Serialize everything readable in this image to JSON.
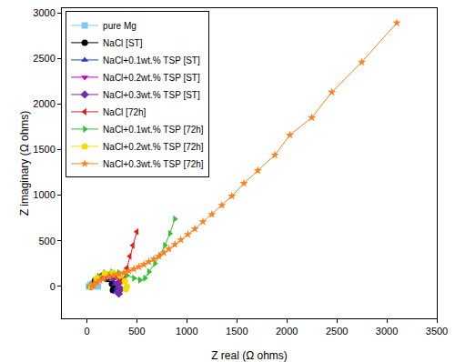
{
  "chart_data": {
    "type": "scatter",
    "x_label": "Z real (Ω ohms)",
    "y_label": "Z imaginary (Ω ohms)",
    "xlim": [
      -250,
      3500
    ],
    "ylim": [
      -350,
      3050
    ],
    "xticks": [
      0,
      500,
      1000,
      1500,
      2000,
      2500,
      3000,
      3500
    ],
    "yticks": [
      0,
      500,
      1000,
      1500,
      2000,
      2500,
      3000
    ],
    "grid": false,
    "legend": "upper left",
    "series": [
      {
        "name": "pure Mg",
        "color": "#7fc8f0",
        "marker": "square",
        "line_style": "solid",
        "x": [
          20,
          40,
          60,
          80,
          100,
          110
        ],
        "values": [
          0,
          20,
          30,
          25,
          10,
          0
        ]
      },
      {
        "name": "NaCl [ST]",
        "color": "#000000",
        "marker": "circle",
        "line_style": "solid",
        "x": [
          40,
          80,
          140,
          200,
          250,
          270,
          260
        ],
        "values": [
          0,
          60,
          90,
          80,
          30,
          -20,
          -40
        ]
      },
      {
        "name": "NaCl+0.1wt.% TSP [ST]",
        "color": "#1f3fbf",
        "marker": "triangle-up",
        "line_style": "solid",
        "x": [
          40,
          90,
          160,
          230,
          280,
          300,
          290
        ],
        "values": [
          0,
          70,
          100,
          80,
          30,
          -20,
          -60
        ]
      },
      {
        "name": "NaCl+0.2wt.% TSP [ST]",
        "color": "#c000c0",
        "marker": "triangle-down",
        "line_style": "solid",
        "x": [
          40,
          100,
          180,
          250,
          300,
          320,
          310
        ],
        "values": [
          0,
          80,
          110,
          90,
          40,
          -20,
          -70
        ]
      },
      {
        "name": "NaCl+0.3wt.% TSP [ST]",
        "color": "#7030a0",
        "marker": "diamond",
        "line_style": "solid",
        "x": [
          40,
          110,
          200,
          270,
          320,
          340,
          320
        ],
        "values": [
          0,
          90,
          120,
          100,
          40,
          -30,
          -80
        ]
      },
      {
        "name": "NaCl [72h]",
        "color": "#e02020",
        "marker": "triangle-left",
        "line_style": "solid",
        "x": [
          40,
          80,
          150,
          230,
          300,
          340,
          370,
          400,
          430,
          460,
          500
        ],
        "values": [
          0,
          80,
          130,
          140,
          110,
          60,
          80,
          200,
          330,
          450,
          600
        ]
      },
      {
        "name": "NaCl+0.1wt.% TSP [72h]",
        "color": "#30c030",
        "marker": "triangle-right",
        "line_style": "solid",
        "x": [
          50,
          80,
          120,
          180,
          250,
          320,
          400,
          470,
          530,
          580,
          620,
          680,
          730,
          780,
          830,
          880
        ],
        "values": [
          0,
          60,
          110,
          150,
          160,
          150,
          120,
          90,
          70,
          90,
          160,
          250,
          340,
          450,
          580,
          740
        ]
      },
      {
        "name": "NaCl+0.2wt.% TSP [72h]",
        "color": "#f0e000",
        "marker": "circle",
        "line_style": "solid",
        "x": [
          40,
          100,
          180,
          260,
          330,
          380,
          400,
          390
        ],
        "values": [
          0,
          90,
          140,
          150,
          120,
          60,
          0,
          -30
        ]
      },
      {
        "name": "NaCl+0.3wt.% TSP [72h]",
        "color": "#ff8020",
        "marker": "star",
        "line_style": "solid",
        "x": [
          50,
          60,
          75,
          100,
          130,
          170,
          220,
          270,
          320,
          370,
          420,
          470,
          520,
          570,
          620,
          670,
          720,
          770,
          820,
          880,
          940,
          1010,
          1080,
          1160,
          1250,
          1350,
          1450,
          1570,
          1710,
          1880,
          2030,
          2250,
          2450,
          2750,
          3100
        ],
        "values": [
          0,
          10,
          25,
          45,
          65,
          85,
          105,
          120,
          135,
          150,
          170,
          190,
          215,
          240,
          270,
          300,
          330,
          370,
          410,
          460,
          510,
          570,
          630,
          710,
          790,
          890,
          990,
          1130,
          1270,
          1440,
          1660,
          1850,
          2130,
          2460,
          2890
        ]
      }
    ]
  }
}
